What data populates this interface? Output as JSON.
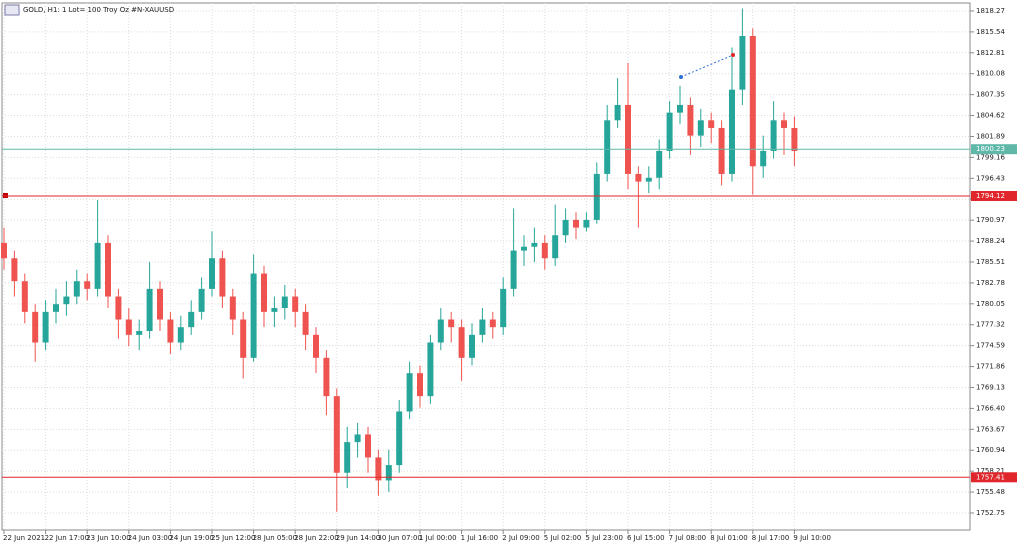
{
  "chart_data": {
    "type": "candlestick",
    "title": "GOLD, H1:  1 Lot= 100 Troy Oz #N-XAUUSD",
    "up_color": "#26a69a",
    "down_color": "#ef5350",
    "grid": true,
    "ylim": [
      1750.53,
      1819.31
    ],
    "yticks": [
      {
        "value": 1818.27,
        "label": "1818.27"
      },
      {
        "value": 1815.54,
        "label": "1815.54"
      },
      {
        "value": 1812.81,
        "label": "1812.81"
      },
      {
        "value": 1810.08,
        "label": "1810.08"
      },
      {
        "value": 1807.35,
        "label": "1807.35"
      },
      {
        "value": 1804.62,
        "label": "1804.62"
      },
      {
        "value": 1801.89,
        "label": "1801.89"
      },
      {
        "value": 1799.16,
        "label": "1799.16"
      },
      {
        "value": 1796.43,
        "label": "1796.43"
      },
      {
        "value": 1793.7,
        "label": "1793.70"
      },
      {
        "value": 1790.97,
        "label": "1790.97"
      },
      {
        "value": 1788.24,
        "label": "1788.24"
      },
      {
        "value": 1785.51,
        "label": "1785.51"
      },
      {
        "value": 1782.78,
        "label": "1782.78"
      },
      {
        "value": 1780.05,
        "label": "1780.05"
      },
      {
        "value": 1777.32,
        "label": "1777.32"
      },
      {
        "value": 1774.59,
        "label": "1774.59"
      },
      {
        "value": 1771.86,
        "label": "1771.86"
      },
      {
        "value": 1769.13,
        "label": "1769.13"
      },
      {
        "value": 1766.4,
        "label": "1766.40"
      },
      {
        "value": 1763.67,
        "label": "1763.67"
      },
      {
        "value": 1760.94,
        "label": "1760.94"
      },
      {
        "value": 1758.21,
        "label": "1758.21"
      },
      {
        "value": 1755.48,
        "label": "1755.48"
      },
      {
        "value": 1752.75,
        "label": "1752.75"
      }
    ],
    "levels": [
      {
        "value": 1800.23,
        "color": "#5fb8a8"
      },
      {
        "value": 1794.12,
        "color": "#e0262b"
      },
      {
        "value": 1757.41,
        "color": "#e0262b"
      }
    ],
    "categories": [
      "22 Jun 2021",
      null,
      null,
      null,
      "22 Jun 17:00",
      null,
      null,
      null,
      "23 Jun 10:00",
      null,
      null,
      null,
      "24 Jun 03:00",
      null,
      null,
      null,
      "24 Jun 19:00",
      null,
      null,
      null,
      "25 Jun 12:00",
      null,
      null,
      null,
      "28 Jun 05:00",
      null,
      null,
      null,
      "28 Jun 22:00",
      null,
      null,
      null,
      "29 Jun 14:00",
      null,
      null,
      null,
      "30 Jun 07:00",
      null,
      null,
      null,
      "1 Jul 00:00",
      null,
      null,
      null,
      "1 Jul 16:00",
      null,
      null,
      null,
      "2 Jul 09:00",
      null,
      null,
      null,
      "5 Jul 02:00",
      null,
      null,
      null,
      "5 Jul 23:00",
      null,
      null,
      null,
      "6 Jul 15:00",
      null,
      null,
      null,
      "7 Jul 08:00",
      null,
      null,
      null,
      "8 Jul 01:00",
      null,
      null,
      null,
      "8 Jul 17:00",
      null,
      null,
      null,
      "9 Jul 10:00"
    ],
    "open": [
      1788,
      1786,
      1783,
      1779,
      1775,
      1779,
      1780,
      1781,
      1783,
      1782,
      1788,
      1781,
      1778,
      1776,
      1776.5,
      1782,
      1778,
      1775,
      1777,
      1779,
      1782,
      1786,
      1781,
      1778,
      1773,
      1784,
      1779,
      1779.5,
      1781,
      1779,
      1776,
      1773,
      1768,
      1758,
      1762,
      1763,
      1760,
      1757,
      1759,
      1766,
      1771,
      1768,
      1775,
      1778,
      1777,
      1773,
      1776,
      1778,
      1777,
      1782,
      1787,
      1787.5,
      1788,
      1786,
      1789,
      1791,
      1790,
      1791,
      1797,
      1804,
      1806,
      1797,
      1796,
      1796.5,
      1800,
      1805,
      1806,
      1802,
      1804,
      1803,
      1797,
      1808,
      1815,
      1798,
      1800,
      1804,
      1803
    ],
    "high": [
      1790,
      1787,
      1784,
      1780,
      1780.5,
      1782,
      1783,
      1784.5,
      1784,
      1793.6,
      1789,
      1782,
      1779.5,
      1778,
      1785.5,
      1783,
      1779,
      1778.5,
      1780.5,
      1783.5,
      1789.5,
      1787,
      1782,
      1779,
      1786.5,
      1785,
      1781,
      1782.5,
      1782,
      1780,
      1777,
      1774,
      1769,
      1764,
      1764.5,
      1764,
      1761,
      1761,
      1767.5,
      1772.5,
      1772,
      1776,
      1779.5,
      1779,
      1778,
      1777.5,
      1779.5,
      1779,
      1783.5,
      1792.5,
      1789,
      1790,
      1789,
      1793,
      1792.5,
      1792,
      1792,
      1798.5,
      1806,
      1809.5,
      1811.5,
      1798,
      1798,
      1801.5,
      1806.5,
      1808.5,
      1807,
      1805.5,
      1805,
      1804,
      1813.5,
      1818.6,
      1816,
      1802,
      1806.5,
      1805,
      1804.5
    ],
    "low": [
      1784.5,
      1781,
      1777.5,
      1772.5,
      1774,
      1777.5,
      1778.5,
      1780,
      1780.5,
      1781,
      1779.5,
      1775.5,
      1774.5,
      1774,
      1775.5,
      1776.5,
      1773.5,
      1774,
      1776,
      1778,
      1781,
      1779.5,
      1776,
      1770.3,
      1772.5,
      1777,
      1777,
      1778,
      1777,
      1774,
      1771,
      1765.5,
      1752.9,
      1756,
      1760,
      1758,
      1755,
      1755.5,
      1758,
      1765,
      1766.5,
      1767,
      1774,
      1775,
      1770,
      1772,
      1775,
      1775.5,
      1776,
      1781,
      1785,
      1785.5,
      1784.5,
      1785,
      1788,
      1788.5,
      1789.5,
      1790.5,
      1796,
      1803,
      1795,
      1790,
      1794.5,
      1795,
      1799,
      1803.5,
      1799.5,
      1800.5,
      1801,
      1795.5,
      1796,
      1806,
      1794.3,
      1796.5,
      1799,
      1799.5,
      1798
    ],
    "close": [
      1786,
      1783,
      1779,
      1775,
      1779,
      1780,
      1781,
      1783,
      1782,
      1788,
      1781,
      1778,
      1776,
      1776.5,
      1782,
      1778,
      1775,
      1777,
      1779,
      1782,
      1786,
      1781,
      1778,
      1773,
      1784,
      1779,
      1779.5,
      1781,
      1779,
      1776,
      1773,
      1768,
      1758,
      1762,
      1763,
      1760,
      1757,
      1759,
      1766,
      1771,
      1768,
      1775,
      1778,
      1777,
      1773,
      1776,
      1778,
      1777,
      1782,
      1787,
      1787.5,
      1788,
      1786,
      1789,
      1791,
      1790,
      1791,
      1797,
      1804,
      1806,
      1797,
      1796,
      1796.5,
      1800,
      1805,
      1806,
      1802,
      1804,
      1803,
      1797,
      1808,
      1815,
      1798,
      1800,
      1804,
      1803,
      1800
    ]
  }
}
